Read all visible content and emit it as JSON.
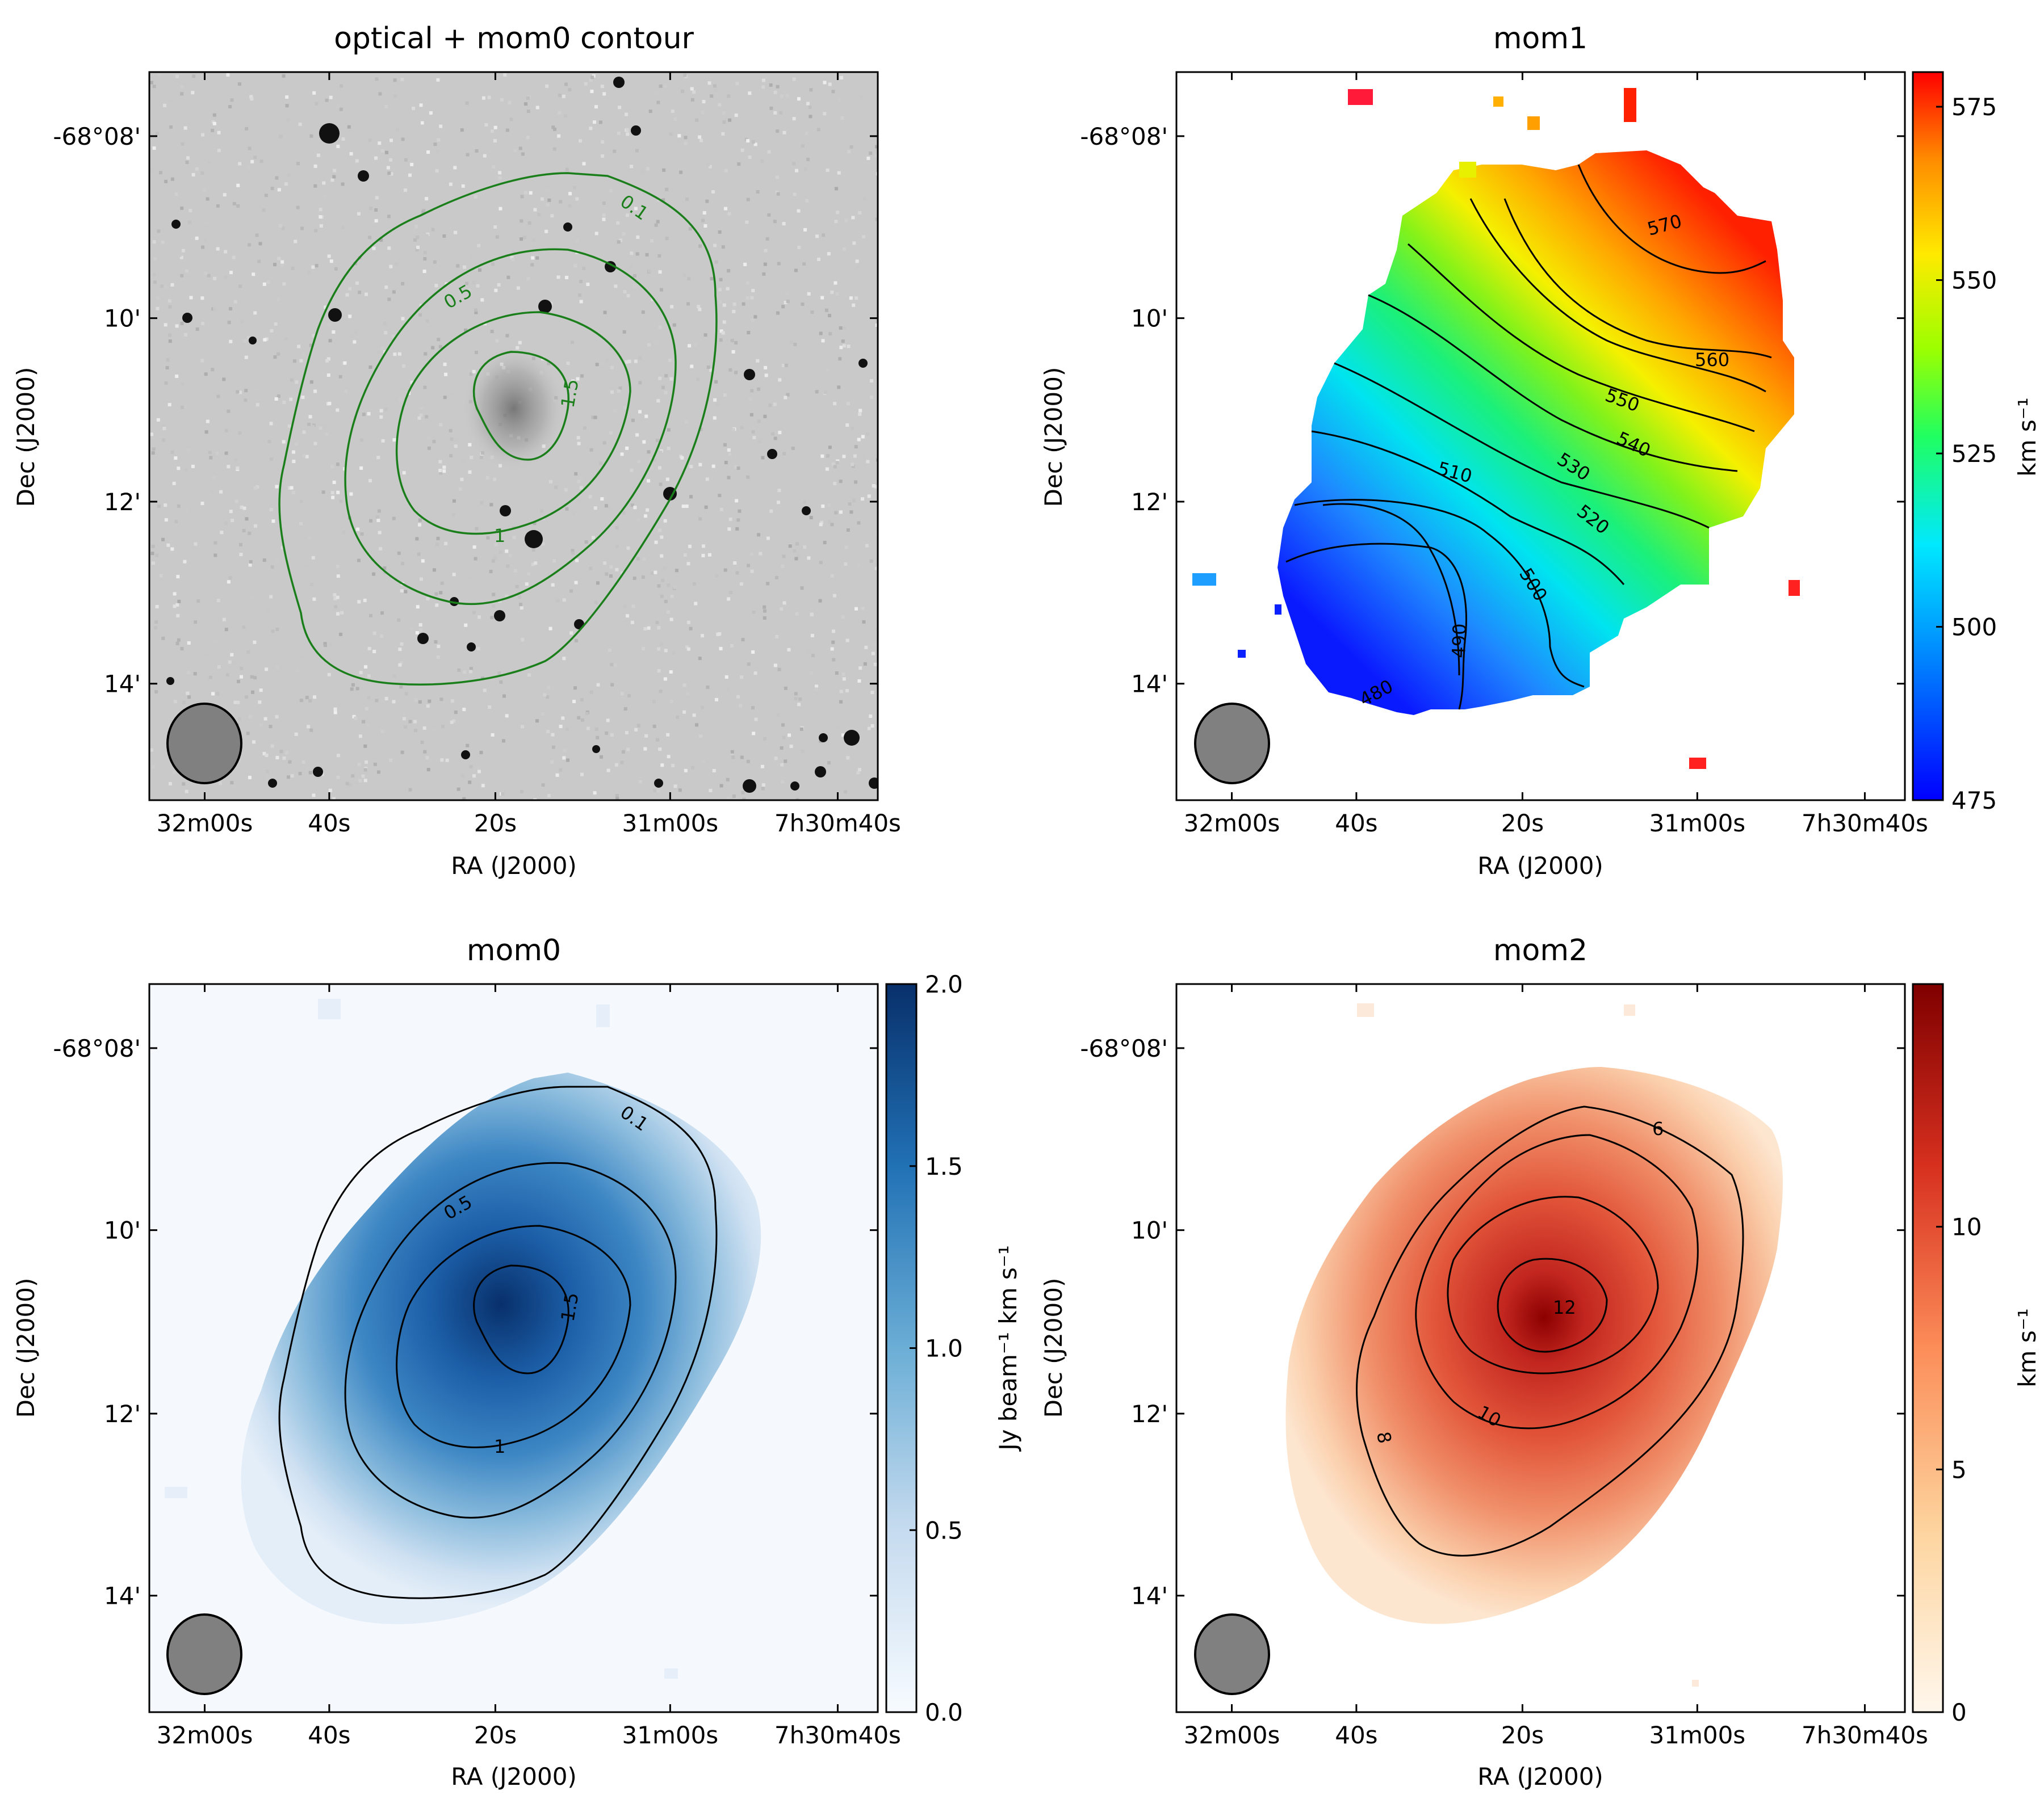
{
  "figure": {
    "description_type": "astronomical moment maps",
    "panels_order": [
      "optical",
      "mom1",
      "mom0",
      "mom2"
    ]
  },
  "chart_data": [
    {
      "id": "optical",
      "type": "heatmap",
      "title": "optical + mom0 contour",
      "xlabel": "RA (J2000)",
      "ylabel": "Dec (J2000)",
      "xticks": [
        "32m00s",
        "40s",
        "20s",
        "31m00s",
        "7h30m40s"
      ],
      "yticks": [
        "-68°08'",
        "10'",
        "12'",
        "14'"
      ],
      "contour_color": "#1a7f1a",
      "contour_levels": [
        "0.1",
        "0.5",
        "1",
        "1.5"
      ],
      "colorbar": null
    },
    {
      "id": "mom1",
      "type": "heatmap",
      "title": "mom1",
      "xlabel": "RA (J2000)",
      "ylabel": "Dec (J2000)",
      "xticks": [
        "32m00s",
        "40s",
        "20s",
        "31m00s",
        "7h30m40s"
      ],
      "yticks": [
        "-68°08'",
        "10'",
        "12'",
        "14'"
      ],
      "contour_color": "#000000",
      "contour_levels": [
        "480",
        "490",
        "500",
        "510",
        "520",
        "530",
        "540",
        "550",
        "560",
        "570"
      ],
      "colorbar": {
        "label": "km s⁻¹",
        "range": [
          475,
          580
        ],
        "ticks": [
          "475",
          "500",
          "525",
          "550",
          "575"
        ],
        "tick_values": [
          475,
          500,
          525,
          550,
          575
        ],
        "colormap": "jet"
      }
    },
    {
      "id": "mom0",
      "type": "heatmap",
      "title": "mom0",
      "xlabel": "RA (J2000)",
      "ylabel": "Dec (J2000)",
      "xticks": [
        "32m00s",
        "40s",
        "20s",
        "31m00s",
        "7h30m40s"
      ],
      "yticks": [
        "-68°08'",
        "10'",
        "12'",
        "14'"
      ],
      "contour_color": "#000000",
      "contour_levels": [
        "0.1",
        "0.5",
        "1",
        "1.5"
      ],
      "colorbar": {
        "label": "Jy beam⁻¹ km s⁻¹",
        "range": [
          0,
          2.0
        ],
        "ticks": [
          "0.0",
          "0.5",
          "1.0",
          "1.5",
          "2.0"
        ],
        "tick_values": [
          0,
          0.5,
          1.0,
          1.5,
          2.0
        ],
        "colormap": "Blues"
      }
    },
    {
      "id": "mom2",
      "type": "heatmap",
      "title": "mom2",
      "xlabel": "RA (J2000)",
      "ylabel": "Dec (J2000)",
      "xticks": [
        "32m00s",
        "40s",
        "20s",
        "31m00s",
        "7h30m40s"
      ],
      "yticks": [
        "-68°08'",
        "10'",
        "12'",
        "14'"
      ],
      "contour_color": "#000000",
      "contour_levels": [
        "6",
        "8",
        "10",
        "12"
      ],
      "colorbar": {
        "label": "km s⁻¹",
        "range": [
          0,
          15
        ],
        "ticks": [
          "0",
          "5",
          "10"
        ],
        "tick_values": [
          0,
          5,
          10
        ],
        "colormap": "OrRd"
      }
    }
  ]
}
